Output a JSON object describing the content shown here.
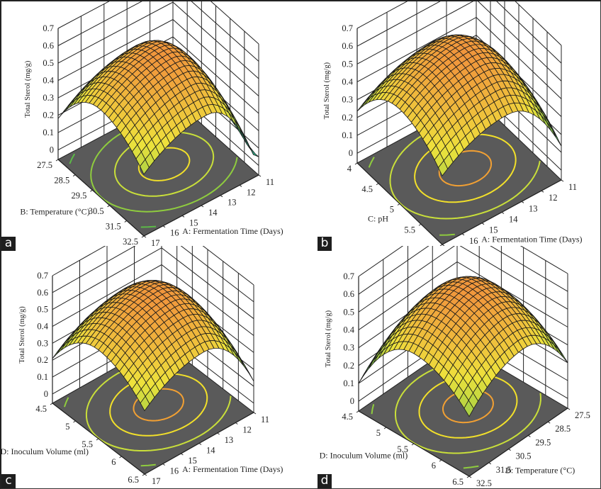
{
  "figure": {
    "panel_labels": [
      "a",
      "b",
      "c",
      "d"
    ]
  },
  "chart_data": [
    {
      "type": "surface3d",
      "panel": "a",
      "zlabel": "Total Sterol (mg/g)",
      "zticks": [
        "0",
        "0.1",
        "0.2",
        "0.3",
        "0.4",
        "0.5",
        "0.6",
        "0.7"
      ],
      "zlim": [
        0,
        0.7
      ],
      "xlabel": "A: Fermentation Time (Days)",
      "xticks": [
        "11",
        "12",
        "13",
        "14",
        "15",
        "16",
        "17"
      ],
      "xlim": [
        11,
        17
      ],
      "ylabel": "B: Temperature (°C)",
      "yticks": [
        "27.5",
        "28.5",
        "29.5",
        "30.5",
        "31.5",
        "32.5"
      ],
      "ylim": [
        27.5,
        32.5
      ],
      "response_max_approx": 0.6,
      "edge_values_approx": {
        "left": 0.33,
        "right": 0.14,
        "front": 0.3,
        "back": 0.55
      },
      "contour_colors": [
        "#f2e02a",
        "#c9df3a",
        "#8fcc3e",
        "#5cb947",
        "#3fb27a"
      ]
    },
    {
      "type": "surface3d",
      "panel": "b",
      "zlabel": "Total Sterol (mg/g)",
      "zticks": [
        "0",
        "0.1",
        "0.2",
        "0.3",
        "0.4",
        "0.5",
        "0.6",
        "0.7"
      ],
      "zlim": [
        0,
        0.7
      ],
      "xlabel": "A: Fermentation Time (Days)",
      "xticks": [
        "11",
        "12",
        "13",
        "14",
        "15",
        "16",
        "17"
      ],
      "xlim": [
        11,
        17
      ],
      "ylabel": "C: pH",
      "yticks": [
        "4",
        "4.5",
        "5",
        "5.5",
        "6"
      ],
      "ylim": [
        4,
        6
      ],
      "response_max_approx": 0.62,
      "edge_values_approx": {
        "left": 0.38,
        "right": 0.28,
        "front": 0.33,
        "back": 0.6
      },
      "contour_colors": [
        "#f2a033",
        "#f2e02a",
        "#c9df3a",
        "#8fcc3e"
      ]
    },
    {
      "type": "surface3d",
      "panel": "c",
      "zlabel": "Total Sterol (mg/g)",
      "zticks": [
        "0",
        "0.1",
        "0.2",
        "0.3",
        "0.4",
        "0.5",
        "0.6",
        "0.7"
      ],
      "zlim": [
        0,
        0.7
      ],
      "xlabel": "A: Fermentation Time (Days)",
      "xticks": [
        "11",
        "12",
        "13",
        "14",
        "15",
        "16",
        "17"
      ],
      "xlim": [
        11,
        17
      ],
      "ylabel": "D: Inoculum Volume (ml)",
      "yticks": [
        "4.5",
        "5",
        "5.5",
        "6",
        "6.5"
      ],
      "ylim": [
        4.5,
        6.5
      ],
      "response_max_approx": 0.62,
      "edge_values_approx": {
        "left": 0.36,
        "right": 0.28,
        "front": 0.32,
        "back": 0.6
      },
      "contour_colors": [
        "#f2a033",
        "#f2e02a",
        "#c9df3a",
        "#8fcc3e"
      ]
    },
    {
      "type": "surface3d",
      "panel": "d",
      "zlabel": "Total Sterol (mg/g)",
      "zticks": [
        "0",
        "0.1",
        "0.2",
        "0.3",
        "0.4",
        "0.5",
        "0.6",
        "0.7"
      ],
      "zlim": [
        0,
        0.7
      ],
      "xlabel": "B: Temperature (°C)",
      "xticks": [
        "27.5",
        "28.5",
        "29.5",
        "30.5",
        "31.5",
        "32.5"
      ],
      "xlim": [
        27.5,
        32.5
      ],
      "ylabel": "D: Inoculum Volume (ml)",
      "yticks": [
        "4.5",
        "5",
        "5.5",
        "6",
        "6.5"
      ],
      "ylim": [
        4.5,
        6.5
      ],
      "response_max_approx": 0.62,
      "edge_values_approx": {
        "left": 0.27,
        "right": 0.37,
        "front": 0.28,
        "back": 0.6
      },
      "contour_colors": [
        "#f2a033",
        "#f2e02a",
        "#c9df3a",
        "#8fcc3e"
      ]
    }
  ]
}
